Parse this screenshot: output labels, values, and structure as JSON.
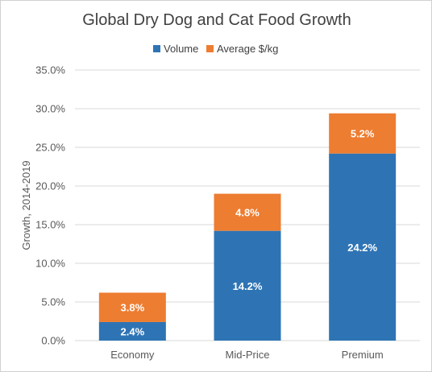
{
  "chart_data": {
    "type": "bar",
    "stacked": true,
    "title": "Global Dry Dog and Cat Food Growth",
    "ylabel": "Growth,  2014-2019",
    "xlabel": "",
    "categories": [
      "Economy",
      "Mid-Price",
      "Premium"
    ],
    "series": [
      {
        "name": "Volume",
        "color": "#2E74B5",
        "values": [
          2.4,
          14.2,
          24.2
        ],
        "labels": [
          "2.4%",
          "14.2%",
          "24.2%"
        ]
      },
      {
        "name": "Average $/kg",
        "color": "#ED7D31",
        "values": [
          3.8,
          4.8,
          5.2
        ],
        "labels": [
          "3.8%",
          "4.8%",
          "5.2%"
        ]
      }
    ],
    "ylim": [
      0,
      35
    ],
    "yticks": [
      0,
      5,
      10,
      15,
      20,
      25,
      30,
      35
    ],
    "ytick_labels": [
      "0.0%",
      "5.0%",
      "10.0%",
      "15.0%",
      "20.0%",
      "25.0%",
      "30.0%",
      "35.0%"
    ],
    "grid": true,
    "legend_position": "top"
  }
}
